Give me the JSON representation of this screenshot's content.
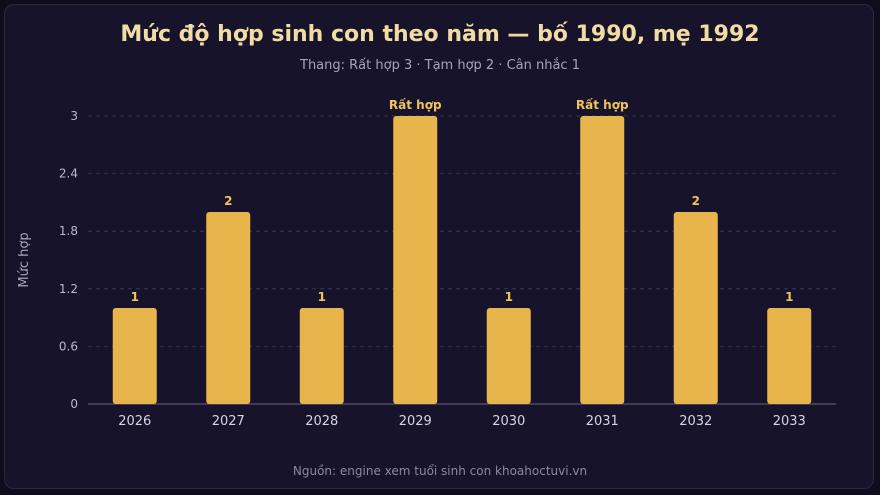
{
  "chart_data": {
    "type": "bar",
    "title": "Mức độ hợp sinh con theo năm — bố 1990, mẹ 1992",
    "subtitle": "Thang: Rất hợp 3 · Tạm hợp 2 · Cân nhắc 1",
    "xlabel": "",
    "ylabel": "Mức hợp",
    "categories": [
      "2026",
      "2027",
      "2028",
      "2029",
      "2030",
      "2031",
      "2032",
      "2033"
    ],
    "values": [
      1,
      2,
      1,
      3,
      1,
      3,
      2,
      1
    ],
    "data_labels": [
      "1",
      "2",
      "1",
      "Rất hợp",
      "1",
      "Rất hợp",
      "2",
      "1"
    ],
    "ylim": [
      0,
      3
    ],
    "yticks": [
      "0",
      "0.6",
      "1.2",
      "1.8",
      "2.4",
      "3"
    ],
    "grid": true,
    "legend": "none",
    "bar_color": "#e8b54c",
    "source": "Nguồn: engine xem tuổi sinh con khoahoctuvi.vn"
  }
}
